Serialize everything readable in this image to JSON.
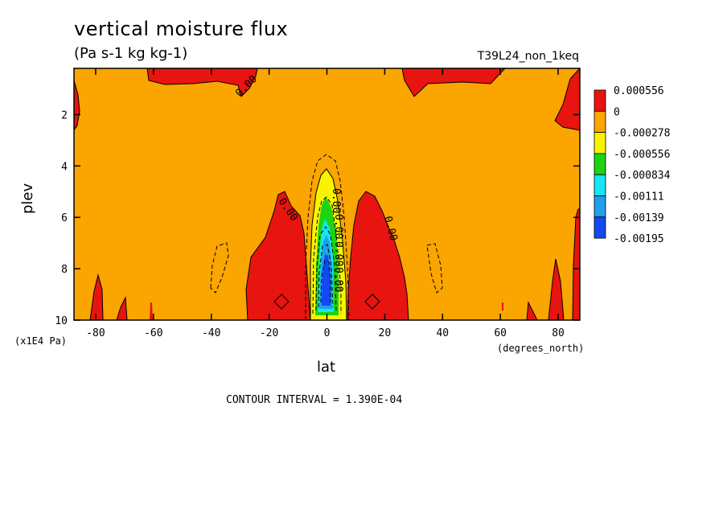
{
  "chart_data": {
    "type": "heatmap",
    "title": "vertical moisture flux",
    "subtitle": "(Pa s-1 kg kg-1)",
    "run_name": "T39L24_non_1keq",
    "xlabel": "lat",
    "x_unit": "(degrees_north)",
    "ylabel": "plev",
    "y_unit": "(x1E4 Pa)",
    "footer": "CONTOUR INTERVAL = 1.390E-04",
    "x_ticks": [
      "-80",
      "-60",
      "-40",
      "-20",
      "0",
      "20",
      "40",
      "60",
      "80"
    ],
    "x_tick_values": [
      -80,
      -60,
      -40,
      -20,
      0,
      20,
      40,
      60,
      80
    ],
    "y_ticks": [
      "2",
      "4",
      "6",
      "8",
      "10"
    ],
    "y_tick_values": [
      2,
      4,
      6,
      8,
      10
    ],
    "xlim": [
      -87.5,
      87.5
    ],
    "ylim": [
      0.2,
      10
    ],
    "y_inverted": true,
    "contour_label": "0.00",
    "colorbar": {
      "labels": [
        "0.000556",
        "0",
        "-0.000278",
        "-0.000556",
        "-0.000834",
        "-0.00111",
        "-0.00139",
        "-0.00195"
      ],
      "colors": [
        "#e8140f",
        "#faa500",
        "#f8f400",
        "#1ed410",
        "#14e6f5",
        "#1ea0ea",
        "#1448f0"
      ]
    },
    "colors": {
      "background": "#faa500",
      "positive": "#e8140f",
      "negative_1": "#f8f400",
      "negative_2": "#1ed410",
      "negative_3": "#14e6f5",
      "negative_4": "#1ea0ea",
      "negative_5": "#1448f0"
    }
  }
}
